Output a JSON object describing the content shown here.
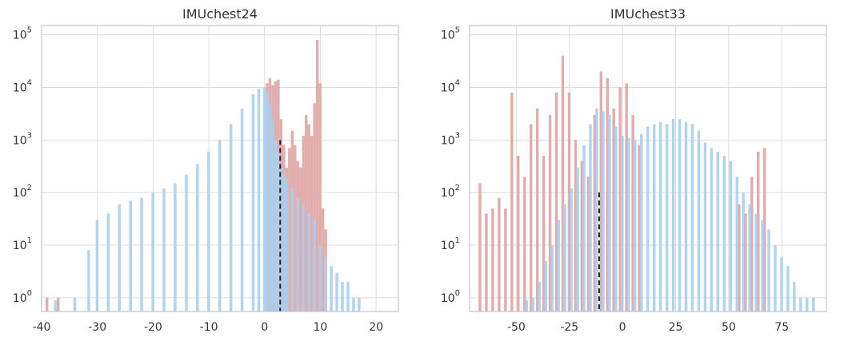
{
  "chart_data": [
    {
      "type": "bar",
      "title": "IMUchest24",
      "y_scale": "log",
      "xlim": [
        -40,
        24
      ],
      "ylim": [
        0.55,
        150000
      ],
      "x_ticks": [
        -40,
        -30,
        -20,
        -10,
        0,
        10,
        20
      ],
      "y_ticks": [
        {
          "value": 1,
          "base": "10",
          "exp": "0"
        },
        {
          "value": 10,
          "base": "10",
          "exp": "1"
        },
        {
          "value": 100,
          "base": "10",
          "exp": "2"
        },
        {
          "value": 1000,
          "base": "10",
          "exp": "3"
        },
        {
          "value": 10000,
          "base": "10",
          "exp": "4"
        },
        {
          "value": 100000,
          "base": "10",
          "exp": "5"
        }
      ],
      "grid": true,
      "marker_line": {
        "x": 2.8,
        "y_top": 1000,
        "style": "dashed"
      },
      "series": [
        {
          "color": "#dea5a4",
          "points": [
            [
              -39,
              1
            ],
            [
              -37,
              1
            ],
            [
              0.5,
              12000
            ],
            [
              1,
              15000
            ],
            [
              1.5,
              11000
            ],
            [
              2,
              13000
            ],
            [
              2.5,
              14000
            ],
            [
              3,
              2500
            ],
            [
              3.5,
              800
            ],
            [
              4,
              300
            ],
            [
              4.5,
              700
            ],
            [
              5,
              1500
            ],
            [
              5.5,
              800
            ],
            [
              6,
              400
            ],
            [
              6.5,
              300
            ],
            [
              7,
              1200
            ],
            [
              7.5,
              3000
            ],
            [
              8,
              2000
            ],
            [
              8.5,
              1200
            ],
            [
              9,
              5000
            ],
            [
              9.5,
              80000
            ],
            [
              10,
              12000
            ],
            [
              10.5,
              50
            ],
            [
              11,
              20
            ]
          ]
        },
        {
          "color": "#a9cfee",
          "points": [
            [
              -37.5,
              0.9
            ],
            [
              -34,
              1
            ],
            [
              -31.5,
              8
            ],
            [
              -30,
              30
            ],
            [
              -28,
              40
            ],
            [
              -26,
              60
            ],
            [
              -24,
              70
            ],
            [
              -22,
              80
            ],
            [
              -20,
              100
            ],
            [
              -18,
              120
            ],
            [
              -16,
              150
            ],
            [
              -14,
              220
            ],
            [
              -12,
              350
            ],
            [
              -10,
              600
            ],
            [
              -8,
              1000
            ],
            [
              -6,
              2000
            ],
            [
              -4,
              4000
            ],
            [
              -2,
              7500
            ],
            [
              -1,
              9500
            ],
            [
              0,
              10000
            ],
            [
              0.5,
              8500
            ],
            [
              1,
              5000
            ],
            [
              1.5,
              2500
            ],
            [
              2,
              1000
            ],
            [
              2.5,
              600
            ],
            [
              3,
              300
            ],
            [
              3.5,
              230
            ],
            [
              4,
              180
            ],
            [
              5,
              120
            ],
            [
              6,
              80
            ],
            [
              7,
              60
            ],
            [
              8,
              40
            ],
            [
              9,
              30
            ],
            [
              10,
              10
            ],
            [
              11,
              6
            ],
            [
              12,
              4
            ],
            [
              13,
              3
            ],
            [
              14,
              2
            ],
            [
              15,
              2
            ],
            [
              16,
              1
            ],
            [
              17,
              1
            ]
          ]
        }
      ]
    },
    {
      "type": "bar",
      "title": "IMUchest33",
      "y_scale": "log",
      "xlim": [
        -72,
        96
      ],
      "ylim": [
        0.55,
        150000
      ],
      "x_ticks": [
        -50,
        -25,
        0,
        25,
        50,
        75
      ],
      "y_ticks": [
        {
          "value": 1,
          "base": "10",
          "exp": "0"
        },
        {
          "value": 10,
          "base": "10",
          "exp": "1"
        },
        {
          "value": 100,
          "base": "10",
          "exp": "2"
        },
        {
          "value": 1000,
          "base": "10",
          "exp": "3"
        },
        {
          "value": 10000,
          "base": "10",
          "exp": "4"
        },
        {
          "value": 100000,
          "base": "10",
          "exp": "5"
        }
      ],
      "grid": true,
      "marker_line": {
        "x": -11,
        "y_top": 100,
        "style": "dashed"
      },
      "series": [
        {
          "color": "#dea5a4",
          "points": [
            [
              -67,
              150
            ],
            [
              -64,
              40
            ],
            [
              -61,
              50
            ],
            [
              -58,
              80
            ],
            [
              -55,
              50
            ],
            [
              -52,
              8000
            ],
            [
              -49,
              500
            ],
            [
              -46,
              200
            ],
            [
              -43,
              2000
            ],
            [
              -40,
              4000
            ],
            [
              -37,
              500
            ],
            [
              -34,
              3000
            ],
            [
              -31,
              8000
            ],
            [
              -28,
              40000
            ],
            [
              -25,
              8000
            ],
            [
              -22,
              1000
            ],
            [
              -19,
              400
            ],
            [
              -16,
              200
            ],
            [
              -13,
              3000
            ],
            [
              -10,
              20000
            ],
            [
              -7,
              15000
            ],
            [
              -4,
              4000
            ],
            [
              -1,
              10000
            ],
            [
              2,
              12000
            ],
            [
              5,
              3000
            ],
            [
              8,
              800
            ],
            [
              55,
              60
            ],
            [
              58,
              40
            ],
            [
              61,
              200
            ],
            [
              64,
              600
            ],
            [
              67,
              700
            ]
          ]
        },
        {
          "color": "#a9cfee",
          "points": [
            [
              -45,
              0.9
            ],
            [
              -42,
              1
            ],
            [
              -39,
              2
            ],
            [
              -36,
              5
            ],
            [
              -33,
              10
            ],
            [
              -30,
              30
            ],
            [
              -27,
              60
            ],
            [
              -24,
              120
            ],
            [
              -21,
              300
            ],
            [
              -18,
              800
            ],
            [
              -15,
              2000
            ],
            [
              -12,
              4000
            ],
            [
              -9,
              3500
            ],
            [
              -6,
              3000
            ],
            [
              -3,
              1800
            ],
            [
              0,
              1200
            ],
            [
              3,
              1100
            ],
            [
              6,
              1000
            ],
            [
              9,
              1300
            ],
            [
              12,
              1800
            ],
            [
              15,
              2000
            ],
            [
              18,
              2200
            ],
            [
              21,
              2000
            ],
            [
              24,
              2500
            ],
            [
              27,
              2500
            ],
            [
              30,
              2200
            ],
            [
              33,
              2000
            ],
            [
              36,
              1500
            ],
            [
              39,
              900
            ],
            [
              42,
              700
            ],
            [
              45,
              600
            ],
            [
              48,
              500
            ],
            [
              51,
              400
            ],
            [
              54,
              200
            ],
            [
              57,
              100
            ],
            [
              60,
              60
            ],
            [
              63,
              40
            ],
            [
              66,
              30
            ],
            [
              69,
              20
            ],
            [
              72,
              10
            ],
            [
              75,
              6
            ],
            [
              78,
              4
            ],
            [
              81,
              2
            ],
            [
              84,
              1
            ],
            [
              87,
              1
            ],
            [
              90,
              1
            ]
          ]
        }
      ]
    }
  ]
}
